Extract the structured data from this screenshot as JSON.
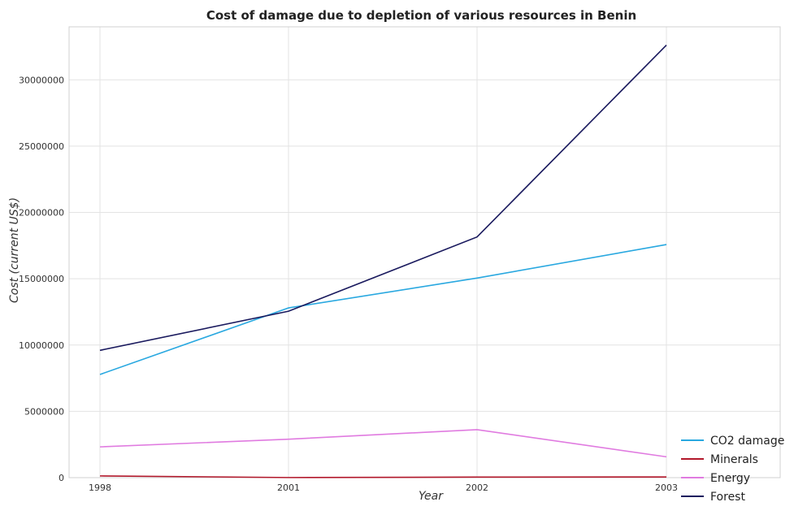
{
  "chart_data": {
    "type": "line",
    "title": "Cost of damage due to depletion of various resources in Benin",
    "xlabel": "Year",
    "ylabel": "Cost (current US$)",
    "categories": [
      "1998",
      "2001",
      "2002",
      "2003"
    ],
    "ylim": [
      0,
      34000000
    ],
    "yticks": [
      0,
      5000000,
      10000000,
      15000000,
      20000000,
      25000000,
      30000000
    ],
    "ytick_labels": [
      "0",
      "5000000",
      "10000000",
      "15000000",
      "20000000",
      "25000000",
      "30000000"
    ],
    "grid": true,
    "legend_position": "bottom-right",
    "series": [
      {
        "name": "CO2 damage",
        "color": "#29a8e0",
        "values": [
          7780000,
          12800000,
          15050000,
          17580000
        ]
      },
      {
        "name": "Minerals",
        "color": "#b2182b",
        "values": [
          130000,
          8000,
          40000,
          50000
        ]
      },
      {
        "name": "Energy",
        "color": "#e07be0",
        "values": [
          2320000,
          2900000,
          3620000,
          1570000
        ]
      },
      {
        "name": "Forest",
        "color": "#1a1a5e",
        "values": [
          9600000,
          12550000,
          18150000,
          32620000
        ]
      }
    ]
  }
}
